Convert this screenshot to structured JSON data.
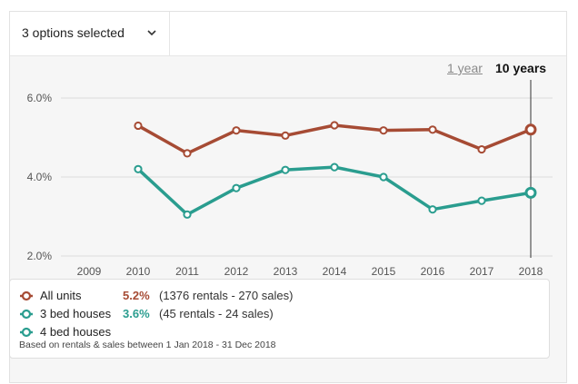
{
  "dropdown": {
    "label": "3 options selected"
  },
  "period_options": {
    "one_year": "1 year",
    "ten_years": "10 years",
    "selected": "10 years"
  },
  "colors": {
    "all_units": "#a64b34",
    "three_bed": "#2a9d8f",
    "four_bed": "#2a9d8f",
    "grid": "#dcdcdc",
    "cursor": "#333333"
  },
  "chart_data": {
    "type": "line",
    "title": "",
    "xlabel": "",
    "ylabel": "",
    "x": [
      2009,
      2010,
      2011,
      2012,
      2013,
      2014,
      2015,
      2016,
      2017,
      2018
    ],
    "x_tick_labels": [
      "2009",
      "2010",
      "2011",
      "2012",
      "2013",
      "2014",
      "2015",
      "2016",
      "2017",
      "2018"
    ],
    "y_tick_labels": [
      "6.0%",
      "4.0%",
      "2.0%"
    ],
    "y_ticks": [
      6.0,
      4.0,
      2.0
    ],
    "ylim": [
      2.0,
      6.0
    ],
    "grid": true,
    "highlight_x": 2018,
    "series": [
      {
        "name": "All units",
        "color": "#a64b34",
        "x": [
          2010,
          2011,
          2012,
          2013,
          2014,
          2015,
          2016,
          2017,
          2018
        ],
        "values": [
          5.3,
          4.6,
          5.18,
          5.05,
          5.31,
          5.18,
          5.2,
          4.7,
          5.2
        ]
      },
      {
        "name": "3 bed houses",
        "color": "#2a9d8f",
        "x": [
          2010,
          2011,
          2012,
          2013,
          2014,
          2015,
          2016,
          2017,
          2018
        ],
        "values": [
          4.2,
          3.05,
          3.72,
          4.18,
          4.25,
          4.0,
          3.18,
          3.4,
          3.6
        ]
      }
    ]
  },
  "legend": {
    "items": [
      {
        "name": "All units",
        "value": "5.2%",
        "detail": "(1376 rentals - 270 sales)",
        "color": "#a64b34"
      },
      {
        "name": "3 bed houses",
        "value": "3.6%",
        "detail": "(45 rentals - 24 sales)",
        "color": "#2a9d8f"
      },
      {
        "name": "4 bed houses",
        "value": "",
        "detail": "",
        "color": "#2a9d8f"
      }
    ],
    "footnote": "Based on rentals & sales between 1 Jan 2018 - 31 Dec 2018"
  }
}
